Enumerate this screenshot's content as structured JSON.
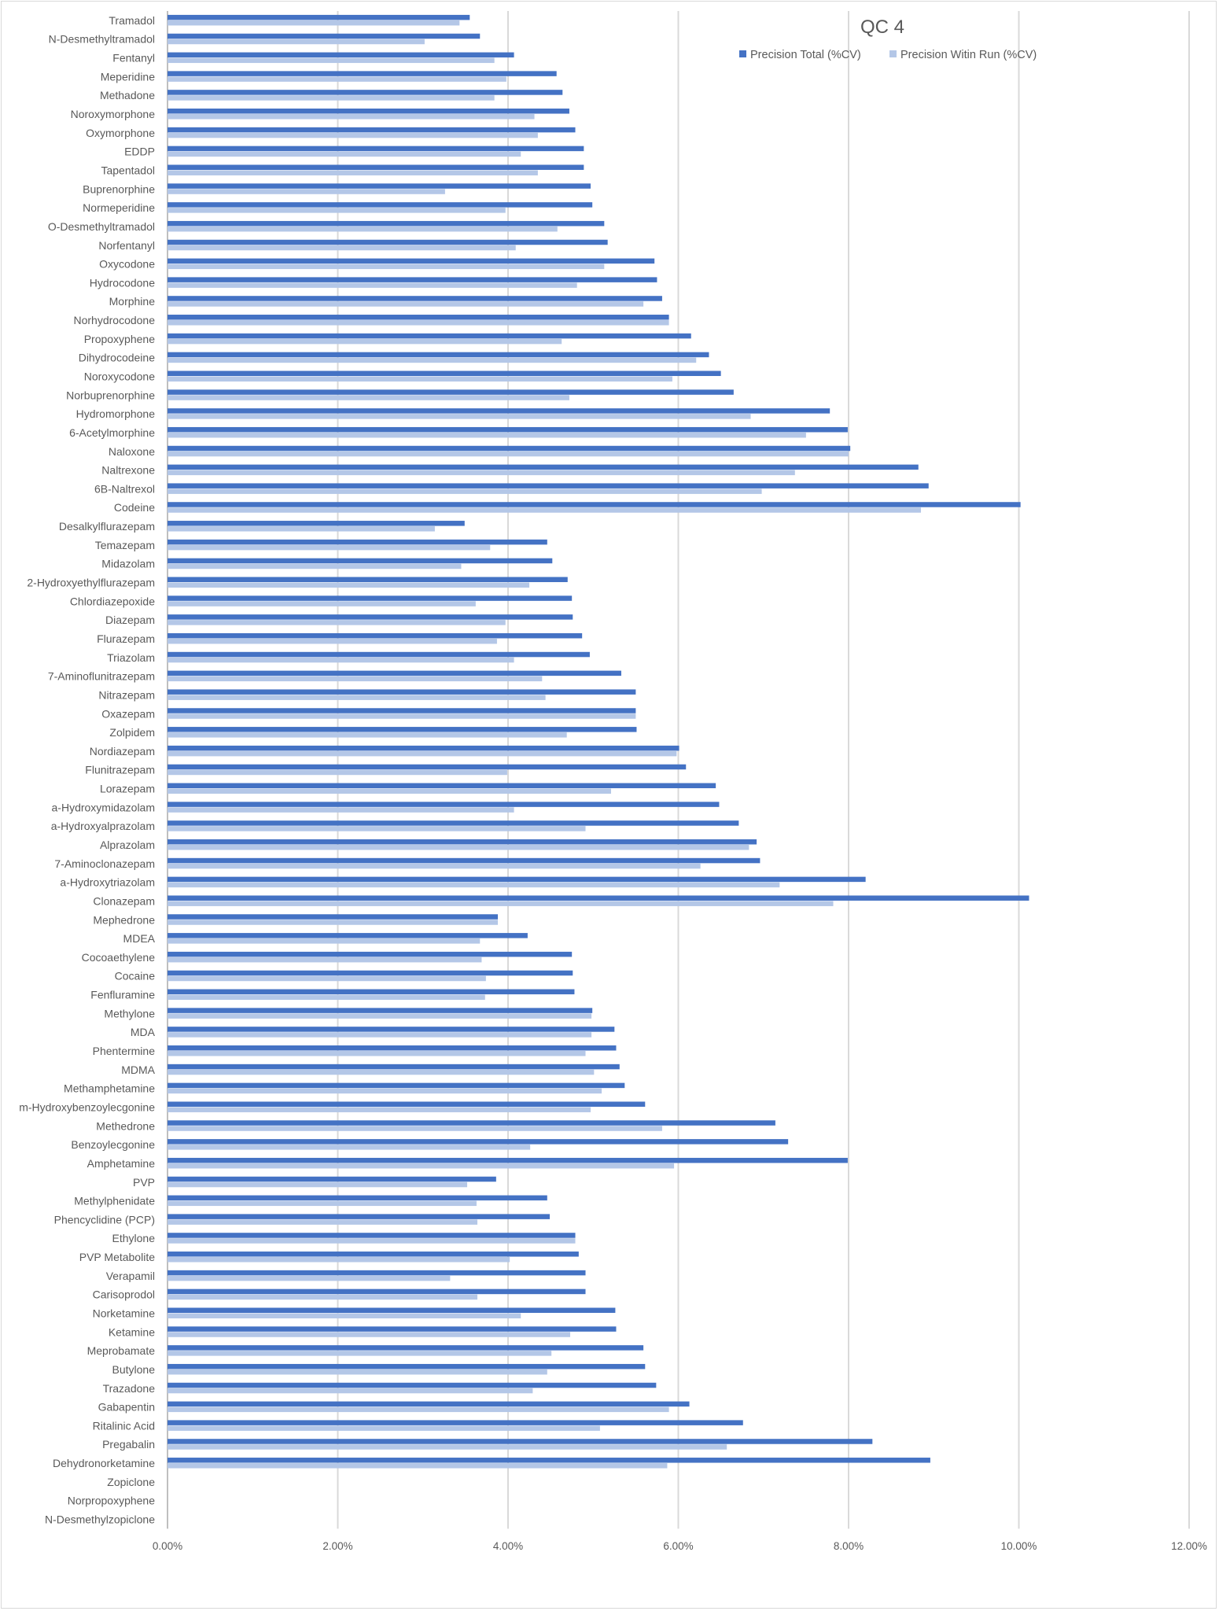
{
  "chart_data": {
    "type": "bar",
    "orientation": "horizontal",
    "title": "QC 4",
    "xlabel": "",
    "ylabel": "",
    "xlim": [
      0,
      12
    ],
    "x_unit": "%",
    "x_ticks": [
      "0.00%",
      "2.00%",
      "4.00%",
      "6.00%",
      "8.00%",
      "10.00%",
      "12.00%"
    ],
    "grid": "vertical gridlines",
    "legend_position": "top-right",
    "colors": {
      "Precision Total (%CV)": "#4472C4",
      "Precision Witin Run (%CV)": "#B4C7E7"
    },
    "categories": [
      "Tramadol",
      "N-Desmethyltramadol",
      "Fentanyl",
      "Meperidine",
      "Methadone",
      "Noroxymorphone",
      "Oxymorphone",
      "EDDP",
      "Tapentadol",
      "Buprenorphine",
      "Normeperidine",
      "O-Desmethyltramadol",
      "Norfentanyl",
      "Oxycodone",
      "Hydrocodone",
      "Morphine",
      "Norhydrocodone",
      "Propoxyphene",
      "Dihydrocodeine",
      "Noroxycodone",
      "Norbuprenorphine",
      "Hydromorphone",
      "6-Acetylmorphine",
      "Naloxone",
      "Naltrexone",
      "6B-Naltrexol",
      "Codeine",
      "Desalkylflurazepam",
      "Temazepam",
      "Midazolam",
      "2-Hydroxyethylflurazepam",
      "Chlordiazepoxide",
      "Diazepam",
      "Flurazepam",
      "Triazolam",
      "7-Aminoflunitrazepam",
      "Nitrazepam",
      "Oxazepam",
      "Zolpidem",
      "Nordiazepam",
      "Flunitrazepam",
      "Lorazepam",
      "a-Hydroxymidazolam",
      "a-Hydroxyalprazolam",
      "Alprazolam",
      "7-Aminoclonazepam",
      "a-Hydroxytriazolam",
      "Clonazepam",
      "Mephedrone",
      "MDEA",
      "Cocoaethylene",
      "Cocaine",
      "Fenfluramine",
      "Methylone",
      "MDA",
      "Phentermine",
      "MDMA",
      "Methamphetamine",
      "m-Hydroxybenzoylecgonine",
      "Methedrone",
      "Benzoylecgonine",
      "Amphetamine",
      "PVP",
      "Methylphenidate",
      "Phencyclidine (PCP)",
      "Ethylone",
      "PVP Metabolite",
      "Verapamil",
      "Carisoprodol",
      "Norketamine",
      "Ketamine",
      "Meprobamate",
      "Butylone",
      "Trazadone",
      "Gabapentin",
      "Ritalinic Acid",
      "Pregabalin",
      "Dehydronorketamine",
      "Zopiclone",
      "Norpropoxyphene",
      "N-Desmethylzopiclone"
    ],
    "series": [
      {
        "name": "Precision Total (%CV)",
        "values": [
          3.55,
          3.67,
          4.07,
          4.57,
          4.64,
          4.72,
          4.79,
          4.89,
          4.89,
          4.97,
          4.99,
          5.13,
          5.17,
          5.72,
          5.75,
          5.81,
          5.89,
          6.15,
          6.36,
          6.5,
          6.65,
          7.78,
          7.99,
          8.02,
          8.82,
          8.94,
          10.02,
          3.49,
          4.46,
          4.52,
          4.7,
          4.75,
          4.76,
          4.87,
          4.96,
          5.33,
          5.5,
          5.5,
          5.51,
          6.01,
          6.09,
          6.44,
          6.48,
          6.71,
          6.92,
          6.96,
          8.2,
          10.12,
          3.88,
          4.23,
          4.75,
          4.76,
          4.78,
          4.99,
          5.25,
          5.27,
          5.31,
          5.37,
          5.61,
          7.14,
          7.29,
          7.99,
          3.86,
          4.46,
          4.49,
          4.79,
          4.83,
          4.91,
          4.91,
          5.26,
          5.27,
          5.59,
          5.61,
          5.74,
          6.13,
          6.76,
          8.28,
          8.96,
          null,
          null,
          null
        ]
      },
      {
        "name": "Precision Witin Run (%CV)",
        "values": [
          3.43,
          3.02,
          3.84,
          3.98,
          3.84,
          4.31,
          4.35,
          4.15,
          4.35,
          3.26,
          3.97,
          4.58,
          4.09,
          5.13,
          4.81,
          5.59,
          5.89,
          4.63,
          6.21,
          5.93,
          4.72,
          6.85,
          7.5,
          8.0,
          7.37,
          6.98,
          8.85,
          3.14,
          3.79,
          3.45,
          4.25,
          3.62,
          3.97,
          3.87,
          4.07,
          4.4,
          4.44,
          5.5,
          4.69,
          5.98,
          3.99,
          5.21,
          4.07,
          4.91,
          6.83,
          6.26,
          7.19,
          7.82,
          3.88,
          3.67,
          3.69,
          3.74,
          3.73,
          4.98,
          4.98,
          4.91,
          5.01,
          5.1,
          4.97,
          5.81,
          4.26,
          5.95,
          3.52,
          3.63,
          3.64,
          4.79,
          4.02,
          3.32,
          3.64,
          4.15,
          4.73,
          4.51,
          4.46,
          4.29,
          5.89,
          5.08,
          6.57,
          5.87,
          null,
          null,
          null
        ]
      }
    ]
  }
}
